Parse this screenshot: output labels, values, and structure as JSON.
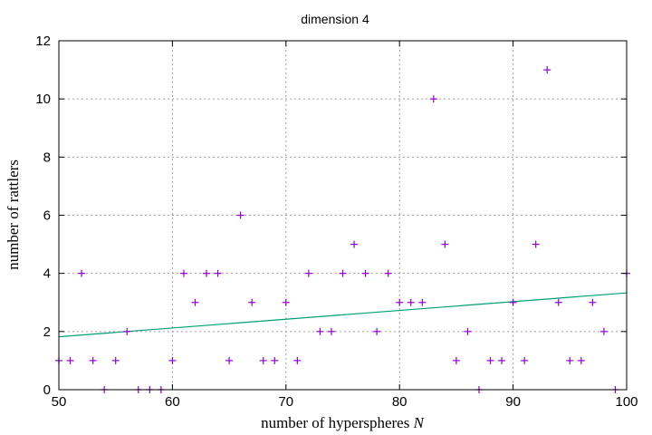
{
  "chart_data": {
    "type": "scatter",
    "title": "dimension 4",
    "xlabel": "number of hyperspheres",
    "xlabel_var": "N",
    "ylabel": "number of rattlers",
    "xlim": [
      50,
      100
    ],
    "ylim": [
      0,
      12
    ],
    "x_ticks": [
      50,
      60,
      70,
      80,
      90,
      100
    ],
    "y_ticks": [
      0,
      2,
      4,
      6,
      8,
      10,
      12
    ],
    "grid": true,
    "series": [
      {
        "marker": "+",
        "color": "#9400d3",
        "points": [
          [
            50,
            1
          ],
          [
            51,
            1
          ],
          [
            52,
            4
          ],
          [
            53,
            1
          ],
          [
            54,
            0
          ],
          [
            55,
            1
          ],
          [
            56,
            2
          ],
          [
            57,
            0
          ],
          [
            58,
            0
          ],
          [
            59,
            0
          ],
          [
            60,
            1
          ],
          [
            61,
            4
          ],
          [
            62,
            3
          ],
          [
            63,
            4
          ],
          [
            64,
            4
          ],
          [
            65,
            1
          ],
          [
            66,
            6
          ],
          [
            67,
            3
          ],
          [
            68,
            1
          ],
          [
            69,
            1
          ],
          [
            70,
            3
          ],
          [
            71,
            1
          ],
          [
            72,
            4
          ],
          [
            73,
            2
          ],
          [
            74,
            2
          ],
          [
            75,
            4
          ],
          [
            76,
            5
          ],
          [
            77,
            4
          ],
          [
            78,
            2
          ],
          [
            79,
            4
          ],
          [
            80,
            3
          ],
          [
            81,
            3
          ],
          [
            82,
            3
          ],
          [
            83,
            10
          ],
          [
            84,
            5
          ],
          [
            85,
            1
          ],
          [
            86,
            2
          ],
          [
            87,
            0
          ],
          [
            88,
            1
          ],
          [
            89,
            1
          ],
          [
            90,
            3
          ],
          [
            91,
            1
          ],
          [
            92,
            5
          ],
          [
            93,
            11
          ],
          [
            94,
            3
          ],
          [
            95,
            1
          ],
          [
            96,
            1
          ],
          [
            97,
            3
          ],
          [
            98,
            2
          ],
          [
            99,
            0
          ],
          [
            100,
            4
          ]
        ]
      },
      {
        "type": "line",
        "color": "#009e73",
        "points": [
          [
            50,
            1.82
          ],
          [
            100,
            3.33
          ]
        ]
      }
    ]
  }
}
